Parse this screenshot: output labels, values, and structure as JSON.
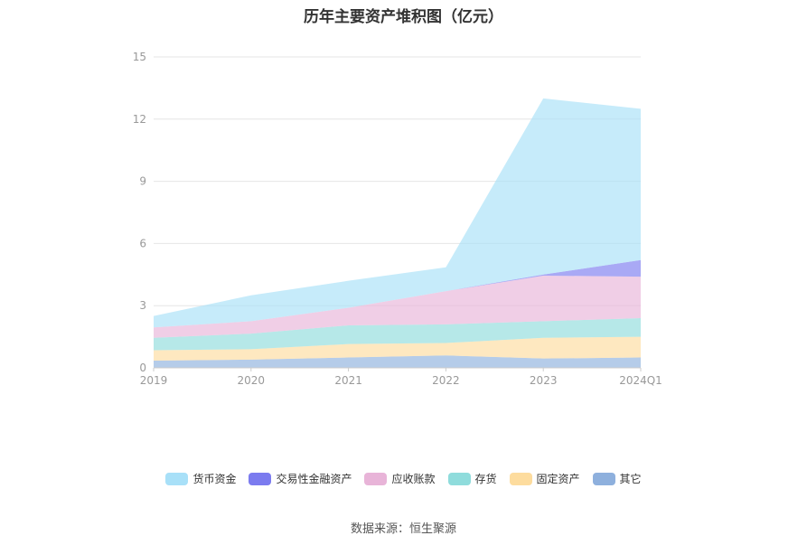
{
  "chart_data": {
    "type": "area",
    "stacked": true,
    "title": "历年主要资产堆积图（亿元）",
    "source": "数据来源：恒生聚源",
    "categories": [
      "2019",
      "2020",
      "2021",
      "2022",
      "2023",
      "2024Q1"
    ],
    "ylim": [
      0,
      15
    ],
    "yticks": [
      "0",
      "3",
      "6",
      "9",
      "12",
      "15"
    ],
    "grid": true,
    "legend_position": "bottom",
    "series": [
      {
        "name": "其它",
        "color": "#8eb0dd",
        "values": [
          0.35,
          0.4,
          0.5,
          0.6,
          0.45,
          0.5
        ]
      },
      {
        "name": "固定资产",
        "color": "#fddc9e",
        "values": [
          0.5,
          0.5,
          0.65,
          0.6,
          1.0,
          1.0
        ]
      },
      {
        "name": "存货",
        "color": "#8fdcdc",
        "values": [
          0.6,
          0.75,
          0.9,
          0.9,
          0.8,
          0.9
        ]
      },
      {
        "name": "应收账款",
        "color": "#e8b4d8",
        "values": [
          0.5,
          0.6,
          0.85,
          1.6,
          2.2,
          2.0
        ]
      },
      {
        "name": "交易性金融资产",
        "color": "#7b7bef",
        "values": [
          0.0,
          0.0,
          0.0,
          0.0,
          0.05,
          0.8
        ]
      },
      {
        "name": "货币资金",
        "color": "#a8e0f8",
        "values": [
          0.55,
          1.25,
          1.3,
          1.15,
          8.5,
          7.3
        ]
      }
    ]
  }
}
